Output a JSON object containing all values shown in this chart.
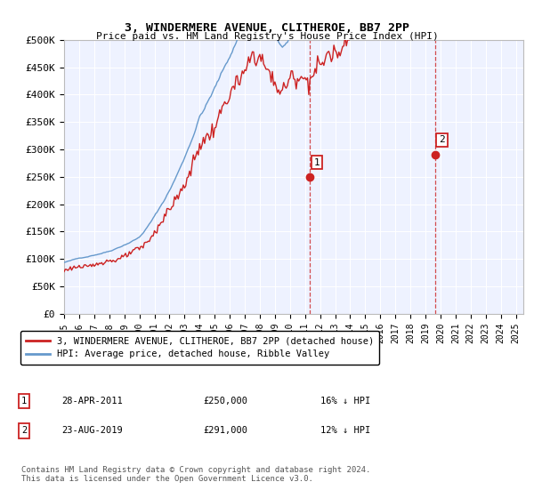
{
  "title": "3, WINDERMERE AVENUE, CLITHEROE, BB7 2PP",
  "subtitle": "Price paid vs. HM Land Registry's House Price Index (HPI)",
  "ylabel_ticks": [
    "£0",
    "£50K",
    "£100K",
    "£150K",
    "£200K",
    "£250K",
    "£300K",
    "£350K",
    "£400K",
    "£450K",
    "£500K"
  ],
  "ytick_values": [
    0,
    50000,
    100000,
    150000,
    200000,
    250000,
    300000,
    350000,
    400000,
    450000,
    500000
  ],
  "xlim_start": 1995.0,
  "xlim_end": 2025.5,
  "ylim": [
    0,
    500000
  ],
  "hpi_color": "#6699cc",
  "price_color": "#cc2222",
  "vline_color": "#cc2222",
  "sale1_x": 2011.32,
  "sale1_y": 250000,
  "sale2_x": 2019.65,
  "sale2_y": 291000,
  "legend_line1": "3, WINDERMERE AVENUE, CLITHEROE, BB7 2PP (detached house)",
  "legend_line2": "HPI: Average price, detached house, Ribble Valley",
  "note1_label": "1",
  "note1_date": "28-APR-2011",
  "note1_price": "£250,000",
  "note1_change": "16% ↓ HPI",
  "note2_label": "2",
  "note2_date": "23-AUG-2019",
  "note2_price": "£291,000",
  "note2_change": "12% ↓ HPI",
  "footer": "Contains HM Land Registry data © Crown copyright and database right 2024.\nThis data is licensed under the Open Government Licence v3.0.",
  "background_color": "#eef2ff",
  "fig_bg_color": "#ffffff"
}
